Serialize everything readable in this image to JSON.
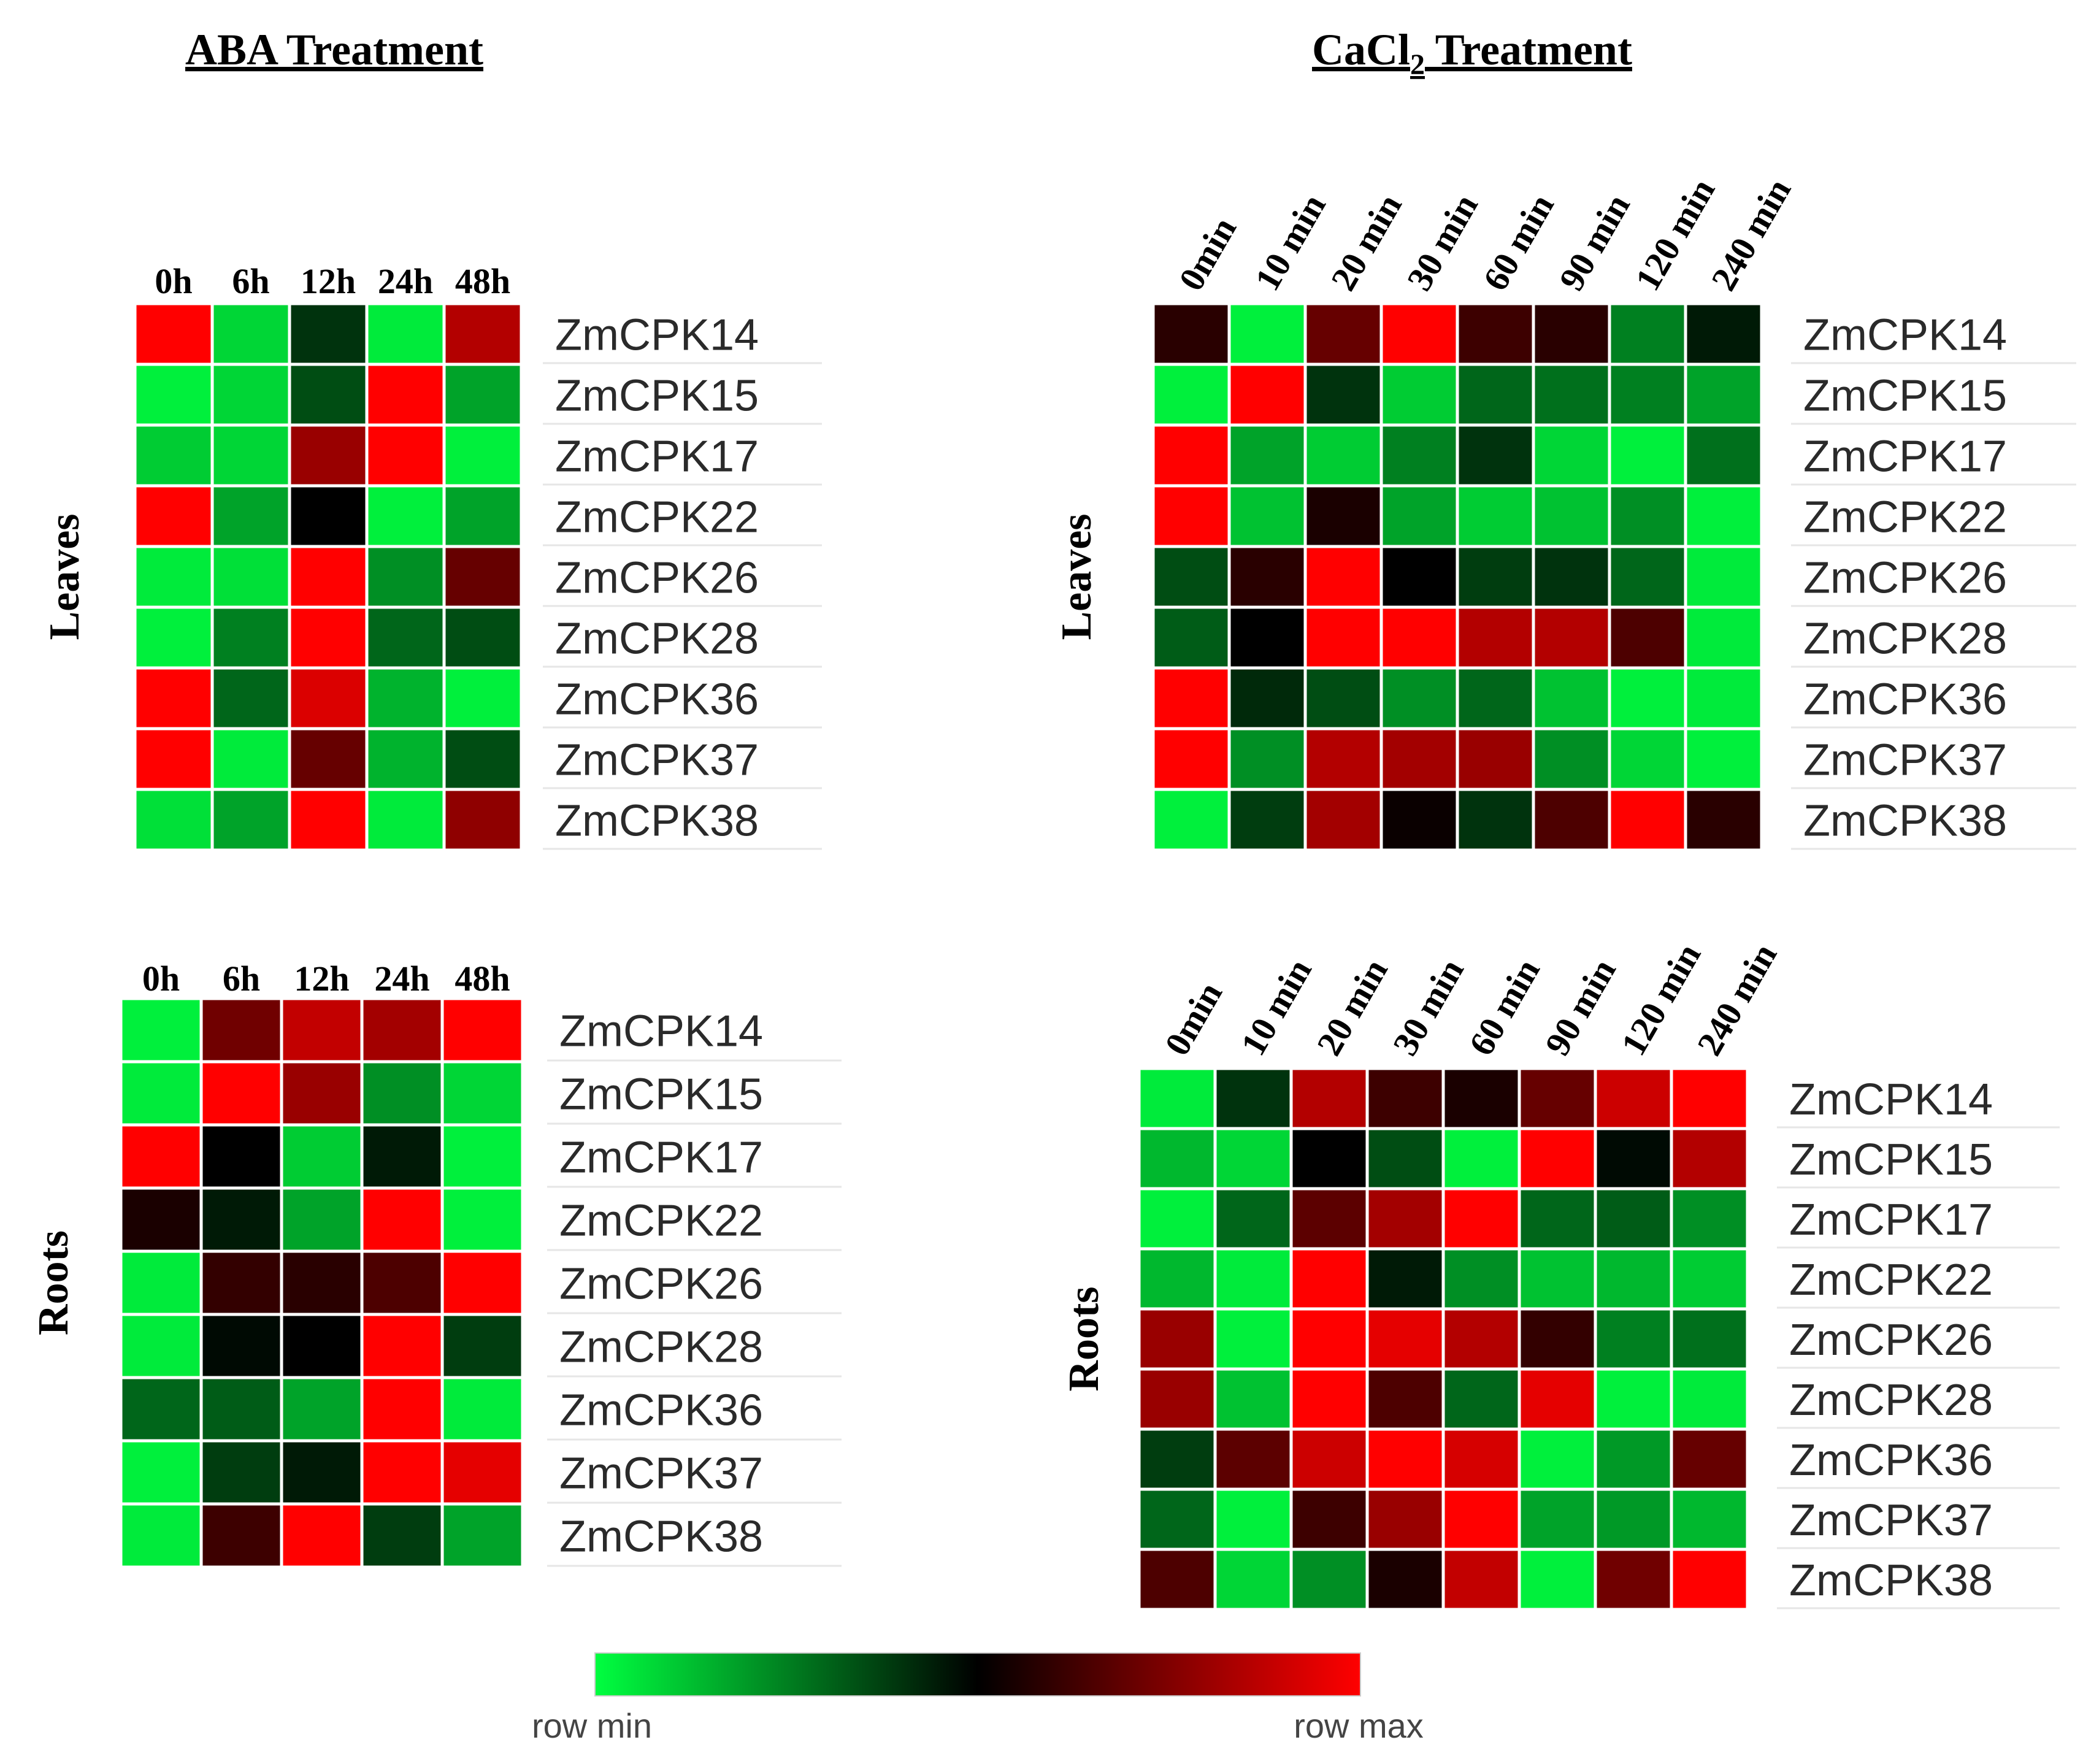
{
  "chart_data": [
    {
      "type": "heatmap",
      "title": "ABA Treatment",
      "row_group_label": "Leaves",
      "columns": [
        "0h",
        "6h",
        "12h",
        "24h",
        "48h"
      ],
      "rows": [
        "ZmCPK14",
        "ZmCPK15",
        "ZmCPK17",
        "ZmCPK22",
        "ZmCPK26",
        "ZmCPK28",
        "ZmCPK36",
        "ZmCPK37",
        "ZmCPK38"
      ],
      "values": [
        [
          1.0,
          0.08,
          0.4,
          0.04,
          0.85
        ],
        [
          0.03,
          0.08,
          0.35,
          1.0,
          0.18
        ],
        [
          0.1,
          0.08,
          0.8,
          1.0,
          0.03
        ],
        [
          1.0,
          0.18,
          0.5,
          0.03,
          0.18
        ],
        [
          0.04,
          0.06,
          1.0,
          0.22,
          0.7
        ],
        [
          0.03,
          0.25,
          1.0,
          0.3,
          0.35
        ],
        [
          1.0,
          0.3,
          0.93,
          0.15,
          0.03
        ],
        [
          1.0,
          0.04,
          0.7,
          0.15,
          0.35
        ],
        [
          0.06,
          0.18,
          1.0,
          0.04,
          0.78
        ]
      ]
    },
    {
      "type": "heatmap",
      "title": "ABA Treatment",
      "row_group_label": "Roots",
      "columns": [
        "0h",
        "6h",
        "12h",
        "24h",
        "48h"
      ],
      "rows": [
        "ZmCPK14",
        "ZmCPK15",
        "ZmCPK17",
        "ZmCPK22",
        "ZmCPK26",
        "ZmCPK28",
        "ZmCPK36",
        "ZmCPK37",
        "ZmCPK38"
      ],
      "values": [
        [
          0.03,
          0.72,
          0.88,
          0.82,
          1.0
        ],
        [
          0.04,
          1.0,
          0.8,
          0.22,
          0.08
        ],
        [
          1.0,
          0.5,
          0.1,
          0.45,
          0.03
        ],
        [
          0.55,
          0.45,
          0.18,
          1.0,
          0.03
        ],
        [
          0.04,
          0.6,
          0.58,
          0.65,
          1.0
        ],
        [
          0.04,
          0.48,
          0.5,
          1.0,
          0.38
        ],
        [
          0.3,
          0.32,
          0.18,
          1.0,
          0.04
        ],
        [
          0.03,
          0.38,
          0.45,
          1.0,
          0.95
        ],
        [
          0.04,
          0.62,
          1.0,
          0.38,
          0.18
        ]
      ]
    },
    {
      "type": "heatmap",
      "title": "CaCl2 Treatment",
      "title_main": "CaCl",
      "title_sub": "2",
      "title_rest": " Treatment",
      "row_group_label": "Leaves",
      "columns": [
        "0min",
        "10 min",
        "20 min",
        "30 min",
        "60 min",
        "90 min",
        "120 min",
        "240 min"
      ],
      "rows": [
        "ZmCPK14",
        "ZmCPK15",
        "ZmCPK17",
        "ZmCPK22",
        "ZmCPK26",
        "ZmCPK28",
        "ZmCPK36",
        "ZmCPK37",
        "ZmCPK38"
      ],
      "values": [
        [
          0.58,
          0.03,
          0.7,
          1.0,
          0.62,
          0.58,
          0.25,
          0.45
        ],
        [
          0.03,
          1.0,
          0.4,
          0.1,
          0.3,
          0.28,
          0.25,
          0.18
        ],
        [
          1.0,
          0.18,
          0.1,
          0.25,
          0.4,
          0.08,
          0.03,
          0.28
        ],
        [
          1.0,
          0.12,
          0.55,
          0.18,
          0.1,
          0.12,
          0.22,
          0.03
        ],
        [
          0.35,
          0.58,
          1.0,
          0.5,
          0.38,
          0.4,
          0.3,
          0.04
        ],
        [
          0.32,
          0.5,
          1.0,
          1.0,
          0.85,
          0.85,
          0.65,
          0.04
        ],
        [
          1.0,
          0.42,
          0.35,
          0.22,
          0.3,
          0.12,
          0.03,
          0.04
        ],
        [
          1.0,
          0.22,
          0.85,
          0.82,
          0.8,
          0.22,
          0.08,
          0.03
        ],
        [
          0.03,
          0.38,
          0.82,
          0.52,
          0.4,
          0.65,
          1.0,
          0.58
        ]
      ]
    },
    {
      "type": "heatmap",
      "title": "CaCl2 Treatment",
      "row_group_label": "Roots",
      "columns": [
        "0min",
        "10 min",
        "20 min",
        "30 min",
        "60 min",
        "90 min",
        "120 min",
        "240 min"
      ],
      "rows": [
        "ZmCPK14",
        "ZmCPK15",
        "ZmCPK17",
        "ZmCPK22",
        "ZmCPK26",
        "ZmCPK28",
        "ZmCPK36",
        "ZmCPK37",
        "ZmCPK38"
      ],
      "values": [
        [
          0.04,
          0.4,
          0.85,
          0.62,
          0.55,
          0.7,
          0.9,
          1.0
        ],
        [
          0.14,
          0.08,
          0.5,
          0.35,
          0.03,
          1.0,
          0.48,
          0.85
        ],
        [
          0.03,
          0.3,
          0.68,
          0.82,
          1.0,
          0.3,
          0.32,
          0.22
        ],
        [
          0.14,
          0.04,
          1.0,
          0.45,
          0.22,
          0.12,
          0.14,
          0.1
        ],
        [
          0.8,
          0.03,
          1.0,
          0.95,
          0.85,
          0.6,
          0.25,
          0.28
        ],
        [
          0.8,
          0.12,
          1.0,
          0.65,
          0.3,
          0.95,
          0.03,
          0.04
        ],
        [
          0.38,
          0.68,
          0.9,
          1.0,
          0.92,
          0.03,
          0.2,
          0.7
        ],
        [
          0.3,
          0.03,
          0.62,
          0.8,
          1.0,
          0.18,
          0.2,
          0.14
        ],
        [
          0.65,
          0.08,
          0.22,
          0.55,
          0.88,
          0.03,
          0.72,
          1.0
        ]
      ]
    }
  ],
  "color_scale": {
    "min_color": "#00ff40",
    "mid_color": "#000000",
    "max_color": "#ff0000",
    "min_label": "row min",
    "max_label": "row max"
  }
}
